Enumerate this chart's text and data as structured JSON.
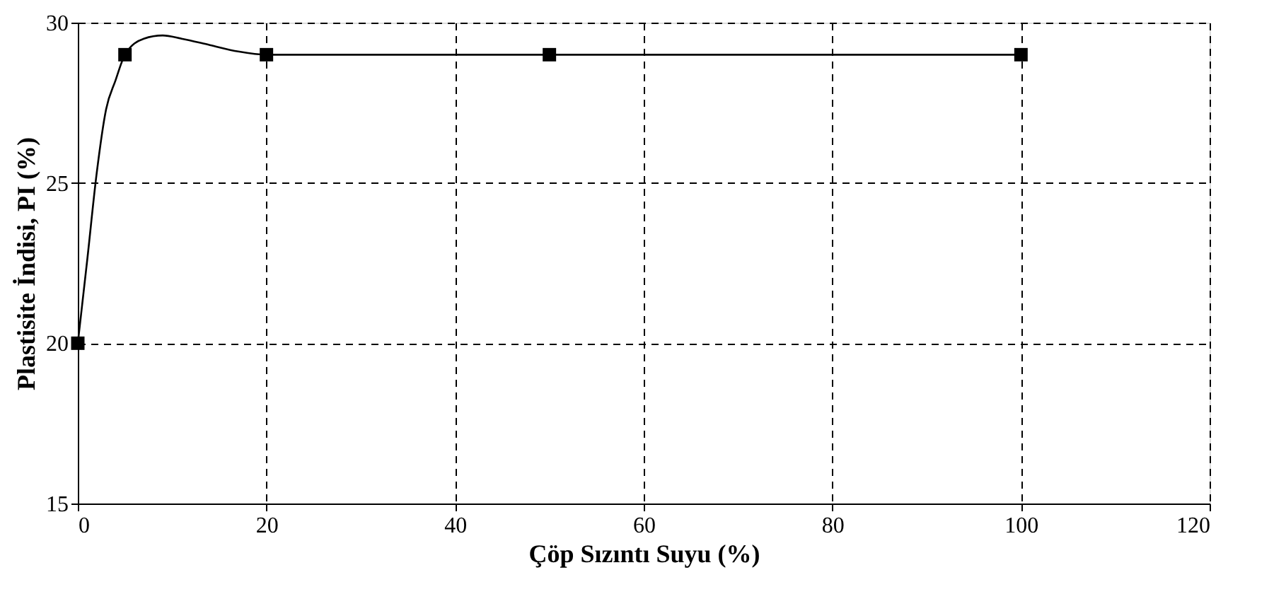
{
  "chart_data": {
    "type": "line",
    "xlabel": "Çöp Sızıntı Suyu  (%)",
    "ylabel": "Plastisite İndisi, PI (%)",
    "xlim": [
      0,
      120
    ],
    "xticks": [
      0,
      20,
      40,
      60,
      80,
      100,
      120
    ],
    "ylim": [
      15,
      30
    ],
    "yticks": [
      15,
      20,
      25,
      30
    ],
    "grid": true,
    "series": [
      {
        "color": "#000000",
        "marker": "none",
        "line_style": "solid",
        "x": [
          0,
          1,
          2,
          3,
          4,
          5,
          7,
          9,
          11,
          14,
          17,
          20,
          50,
          100
        ],
        "values": [
          20,
          22.6,
          25.3,
          27.3,
          28.2,
          29,
          29.5,
          29.6,
          29.5,
          29.3,
          29.1,
          29,
          29,
          29
        ]
      },
      {
        "type": "scatter",
        "color": "#000000",
        "marker": "square",
        "x": [
          0,
          5,
          20,
          50,
          100
        ],
        "values": [
          20,
          29,
          29,
          29,
          29
        ]
      }
    ]
  }
}
